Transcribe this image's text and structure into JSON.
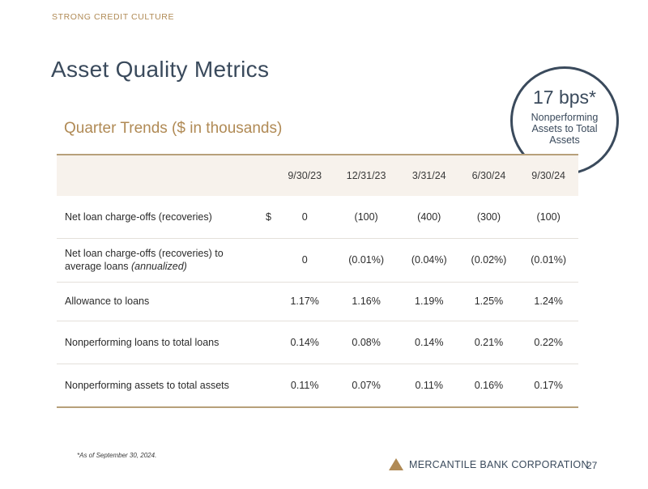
{
  "eyebrow": "STRONG CREDIT CULTURE",
  "title": "Asset Quality Metrics",
  "subtitle": "Quarter Trends ($ in thousands)",
  "callout": {
    "value": "17 bps*",
    "label": "Nonperforming Assets to Total Assets"
  },
  "table": {
    "columns": [
      "9/30/23",
      "12/31/23",
      "3/31/24",
      "6/30/24",
      "9/30/24"
    ],
    "rows": [
      {
        "label": "Net loan charge-offs (recoveries)",
        "currency": "$",
        "values": [
          "0",
          "(100)",
          "(400)",
          "(300)",
          "(100)"
        ]
      },
      {
        "label": "Net loan charge-offs (recoveries) to average loans",
        "label_suffix": "(annualized)",
        "currency": "",
        "values": [
          "0",
          "(0.01%)",
          "(0.04%)",
          "(0.02%)",
          "(0.01%)"
        ]
      },
      {
        "label": "Allowance to loans",
        "currency": "",
        "values": [
          "1.17%",
          "1.16%",
          "1.19%",
          "1.25%",
          "1.24%"
        ]
      },
      {
        "label": "Nonperforming loans to total loans",
        "currency": "",
        "values": [
          "0.14%",
          "0.08%",
          "0.14%",
          "0.21%",
          "0.22%"
        ]
      },
      {
        "label": "Nonperforming assets to total assets",
        "currency": "",
        "values": [
          "0.11%",
          "0.07%",
          "0.11%",
          "0.16%",
          "0.17%"
        ]
      }
    ]
  },
  "footnote": "*As of September 30, 2024.",
  "footer": {
    "company": "MERCANTILE BANK CORPORATION",
    "page_number": "27",
    "logo_icon": "triangle-logo-icon",
    "accent_color": "#b08a55",
    "navy_color": "#3a4a5c"
  }
}
